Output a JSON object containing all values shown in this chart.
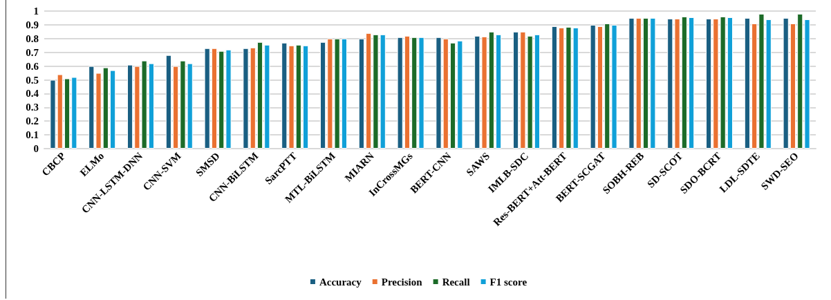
{
  "chart_data": {
    "type": "bar",
    "categories": [
      "CBCP",
      "ELMo",
      "CNN-LSTM-DNN",
      "CNN-SVM",
      "SMSD",
      "CNN-BiLSTM",
      "SarcPTT",
      "MTL-BiLSTM",
      "MIARN",
      "InCrossMGs",
      "BERT-CNN",
      "SAWS",
      "IMLB-SDC",
      "Res-BERT+Att-BERT",
      "BERT-SCGAT",
      "SOBH-REB",
      "SD-SCOT",
      "SDO-BCRT",
      "LDL-SDTE",
      "SWD-SEO"
    ],
    "series": [
      {
        "name": "Accuracy",
        "color": "#1a5f82",
        "values": [
          0.5,
          0.6,
          0.61,
          0.68,
          0.73,
          0.73,
          0.77,
          0.775,
          0.8,
          0.81,
          0.81,
          0.82,
          0.85,
          0.89,
          0.9,
          0.95,
          0.945,
          0.945,
          0.95,
          0.95
        ]
      },
      {
        "name": "Precision",
        "color": "#ea7131",
        "values": [
          0.54,
          0.55,
          0.6,
          0.6,
          0.73,
          0.735,
          0.75,
          0.8,
          0.84,
          0.82,
          0.8,
          0.815,
          0.85,
          0.88,
          0.89,
          0.95,
          0.945,
          0.945,
          0.91,
          0.91
        ]
      },
      {
        "name": "Recall",
        "color": "#1c6b28",
        "values": [
          0.51,
          0.59,
          0.64,
          0.64,
          0.71,
          0.775,
          0.755,
          0.8,
          0.83,
          0.81,
          0.77,
          0.85,
          0.82,
          0.885,
          0.91,
          0.95,
          0.96,
          0.96,
          0.98,
          0.98
        ]
      },
      {
        "name": "F1 score",
        "color": "#10a0d8",
        "values": [
          0.52,
          0.57,
          0.62,
          0.62,
          0.72,
          0.755,
          0.75,
          0.8,
          0.83,
          0.81,
          0.785,
          0.83,
          0.83,
          0.88,
          0.9,
          0.95,
          0.955,
          0.955,
          0.94,
          0.94
        ]
      }
    ],
    "ylim": [
      0,
      1
    ],
    "yticks": [
      0,
      0.1,
      0.2,
      0.3,
      0.4,
      0.5,
      0.6,
      0.7,
      0.8,
      0.9,
      1
    ],
    "grid": "y",
    "legend": "bottom"
  }
}
